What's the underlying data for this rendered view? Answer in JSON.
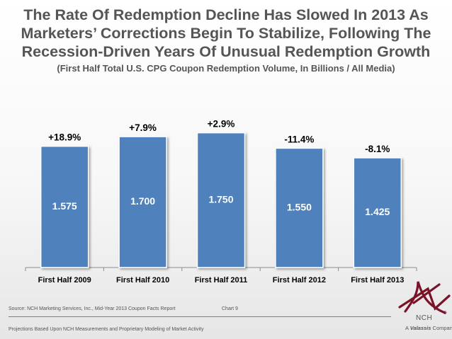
{
  "title": {
    "line1": "The Rate Of Redemption Decline Has Slowed In 2013 As",
    "line2": "Marketers’ Corrections Begin To Stabilize, Following The",
    "line3": "Recession-Driven Years Of Unusual Redemption Growth"
  },
  "subtitle": "(First Half Total U.S. CPG Coupon Redemption Volume, In Billions / All Media)",
  "chart_data": {
    "type": "bar",
    "title": "The Rate Of Redemption Decline Has Slowed In 2013 As Marketers’ Corrections Begin To Stabilize, Following The Recession-Driven Years Of Unusual Redemption Growth",
    "subtitle": "(First Half Total U.S. CPG Coupon Redemption Volume, In Billions / All Media)",
    "categories": [
      "First Half 2009",
      "First Half 2010",
      "First Half 2011",
      "First Half 2012",
      "First Half 2013"
    ],
    "values": [
      1.575,
      1.7,
      1.75,
      1.55,
      1.425
    ],
    "value_labels": [
      "1.575",
      "1.700",
      "1.750",
      "1.550",
      "1.425"
    ],
    "change_labels": [
      "+18.9%",
      "+7.9%",
      "+2.9%",
      "-11.4%",
      "-8.1%"
    ],
    "xlabel": "",
    "ylabel": "",
    "ylim": [
      0,
      2.05
    ],
    "grid": false,
    "legend": "none",
    "bar_color": "#4f81bd"
  },
  "footer": {
    "source": "Source: NCH Marketing Services, Inc., Mid-Year 2013 Coupon Facts Report",
    "chart_number": "Chart 9",
    "projections": "Projections Based Upon NCH Measurements and Proprietary Modeling of Market Activity"
  },
  "logo": {
    "name": "NCH",
    "registered": "®",
    "tagline_prefix": "A",
    "tagline_brand": "Valassis",
    "tagline_suffix": "Company",
    "color": "#7a1228"
  }
}
